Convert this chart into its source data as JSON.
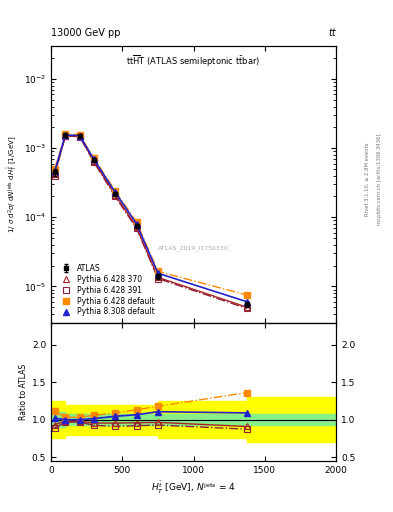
{
  "header_left": "13000 GeV pp",
  "header_right": "tt",
  "watermark": "ATLAS_2019_I1750330",
  "right_label1": "Rivet 3.1.10, ≥ 2.8M events",
  "right_label2": "mcplots.cern.ch [arXiv:1306.3436]",
  "x_data": [
    25,
    100,
    200,
    300,
    450,
    600,
    750,
    1375
  ],
  "atlas_y": [
    0.00045,
    0.00155,
    0.00152,
    0.00068,
    0.00022,
    7.5e-05,
    1.4e-05,
    5.5e-06
  ],
  "atlas_yerr": [
    5e-05,
    8e-05,
    8e-05,
    4e-05,
    1.2e-05,
    5e-06,
    1e-06,
    5e-07
  ],
  "py6_370_y": [
    0.00042,
    0.00152,
    0.00149,
    0.00065,
    0.00021,
    7.2e-05,
    1.35e-05,
    5e-06
  ],
  "py6_391_y": [
    0.0004,
    0.0015,
    0.00147,
    0.00063,
    0.0002,
    6.9e-05,
    1.3e-05,
    4.8e-06
  ],
  "py6_def_y": [
    0.0005,
    0.0016,
    0.00157,
    0.00072,
    0.00024,
    8.5e-05,
    1.65e-05,
    7.5e-06
  ],
  "py8_def_y": [
    0.00046,
    0.00155,
    0.00152,
    0.00069,
    0.00023,
    8e-05,
    1.55e-05,
    6e-06
  ],
  "atlas_color": "#000000",
  "py6_370_color": "#aa2222",
  "py6_391_color": "#882244",
  "py6_def_color": "#ff8800",
  "py8_def_color": "#2222cc",
  "band_x": [
    0,
    25,
    100,
    200,
    300,
    450,
    600,
    750,
    1375,
    2000
  ],
  "band_green_lo": [
    0.9,
    0.9,
    0.93,
    0.93,
    0.93,
    0.93,
    0.93,
    0.93,
    0.93,
    0.93
  ],
  "band_green_hi": [
    1.1,
    1.1,
    1.07,
    1.07,
    1.07,
    1.07,
    1.07,
    1.07,
    1.07,
    1.07
  ],
  "band_yellow_lo": [
    0.75,
    0.75,
    0.8,
    0.8,
    0.8,
    0.8,
    0.8,
    0.75,
    0.7,
    0.7
  ],
  "band_yellow_hi": [
    1.25,
    1.25,
    1.2,
    1.2,
    1.2,
    1.2,
    1.2,
    1.25,
    1.3,
    1.3
  ],
  "ylim_main": [
    3e-06,
    0.03
  ],
  "xlim": [
    0,
    2000
  ],
  "ylim_ratio": [
    0.45,
    2.3
  ],
  "yticks_ratio": [
    0.5,
    1.0,
    1.5,
    2.0
  ],
  "xticks": [
    0,
    500,
    1000,
    1500,
    2000
  ]
}
